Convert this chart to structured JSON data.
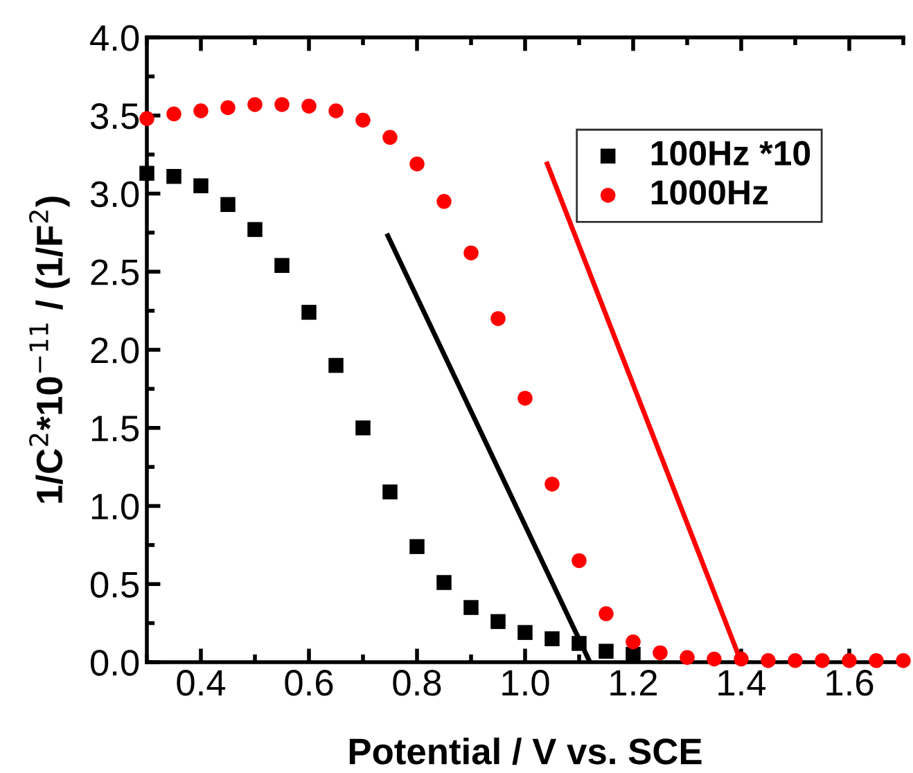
{
  "chart_data": {
    "type": "scatter",
    "xlabel": "Potential / V vs. SCE",
    "ylabel": "1/C$^{2}$*10$^{−11}$ / (1/F$^{2}$)",
    "xlim": [
      0.3,
      1.7
    ],
    "ylim": [
      0,
      4.0
    ],
    "xticks": [
      {
        "value": 0.3,
        "label": null
      },
      0.4,
      {
        "value": 0.5,
        "label": null
      },
      0.6,
      {
        "value": 0.7,
        "label": null
      },
      0.8,
      {
        "value": 0.9,
        "label": null
      },
      {
        "value": 1.0,
        "label": "1.0"
      },
      {
        "value": 1.1,
        "label": null
      },
      1.2,
      {
        "value": 1.3,
        "label": null
      },
      1.4,
      {
        "value": 1.5,
        "label": null
      },
      1.6,
      {
        "value": 1.7,
        "label": null
      }
    ],
    "yticks": [
      {
        "value": 0,
        "label": "0.0"
      },
      {
        "value": 0.25,
        "label": null
      },
      0.5,
      {
        "value": 0.75,
        "label": null
      },
      {
        "value": 1,
        "label": "1.0"
      },
      {
        "value": 1.25,
        "label": null
      },
      1.5,
      {
        "value": 1.75,
        "label": null
      },
      {
        "value": 2,
        "label": "2.0"
      },
      {
        "value": 2.25,
        "label": null
      },
      2.5,
      {
        "value": 2.75,
        "label": null
      },
      {
        "value": 3,
        "label": "3.0"
      },
      {
        "value": 3.25,
        "label": null
      },
      3.5,
      {
        "value": 3.75,
        "label": null
      },
      {
        "value": 4,
        "label": "4.0"
      }
    ],
    "grid": false,
    "legend": "top right",
    "series": [
      {
        "name": "100Hz *10",
        "color": "#000000",
        "marker": "square",
        "x": [
          0.3,
          0.35,
          0.4,
          0.45,
          0.5,
          0.55,
          0.6,
          0.65,
          0.7,
          0.75,
          0.8,
          0.85,
          0.9,
          0.95,
          1.0,
          1.05,
          1.1,
          1.15,
          1.2
        ],
        "values": [
          3.13,
          3.11,
          3.05,
          2.93,
          2.77,
          2.54,
          2.24,
          1.9,
          1.5,
          1.09,
          0.74,
          0.51,
          0.35,
          0.26,
          0.19,
          0.15,
          0.12,
          0.07,
          0.05
        ]
      },
      {
        "name": "1000Hz",
        "color": "#ff0000",
        "marker": "circle",
        "x": [
          0.3,
          0.35,
          0.4,
          0.45,
          0.5,
          0.55,
          0.6,
          0.65,
          0.7,
          0.75,
          0.8,
          0.85,
          0.9,
          0.95,
          1.0,
          1.05,
          1.1,
          1.15,
          1.2,
          1.25,
          1.3,
          1.35,
          1.4,
          1.45,
          1.5,
          1.55,
          1.6,
          1.65,
          1.7
        ],
        "values": [
          3.48,
          3.51,
          3.53,
          3.55,
          3.57,
          3.57,
          3.56,
          3.53,
          3.47,
          3.36,
          3.19,
          2.95,
          2.62,
          2.2,
          1.69,
          1.14,
          0.65,
          0.31,
          0.13,
          0.06,
          0.03,
          0.02,
          0.02,
          0.01,
          0.01,
          0.01,
          0.01,
          0.01,
          0.01
        ]
      },
      {
        "type": "line",
        "color": "#000000",
        "x": [
          0.746,
          1.12
        ],
        "values": [
          2.73,
          0
        ]
      },
      {
        "type": "line",
        "color": "#ff0000",
        "x": [
          1.041,
          1.4
        ],
        "values": [
          3.19,
          0
        ]
      }
    ]
  }
}
